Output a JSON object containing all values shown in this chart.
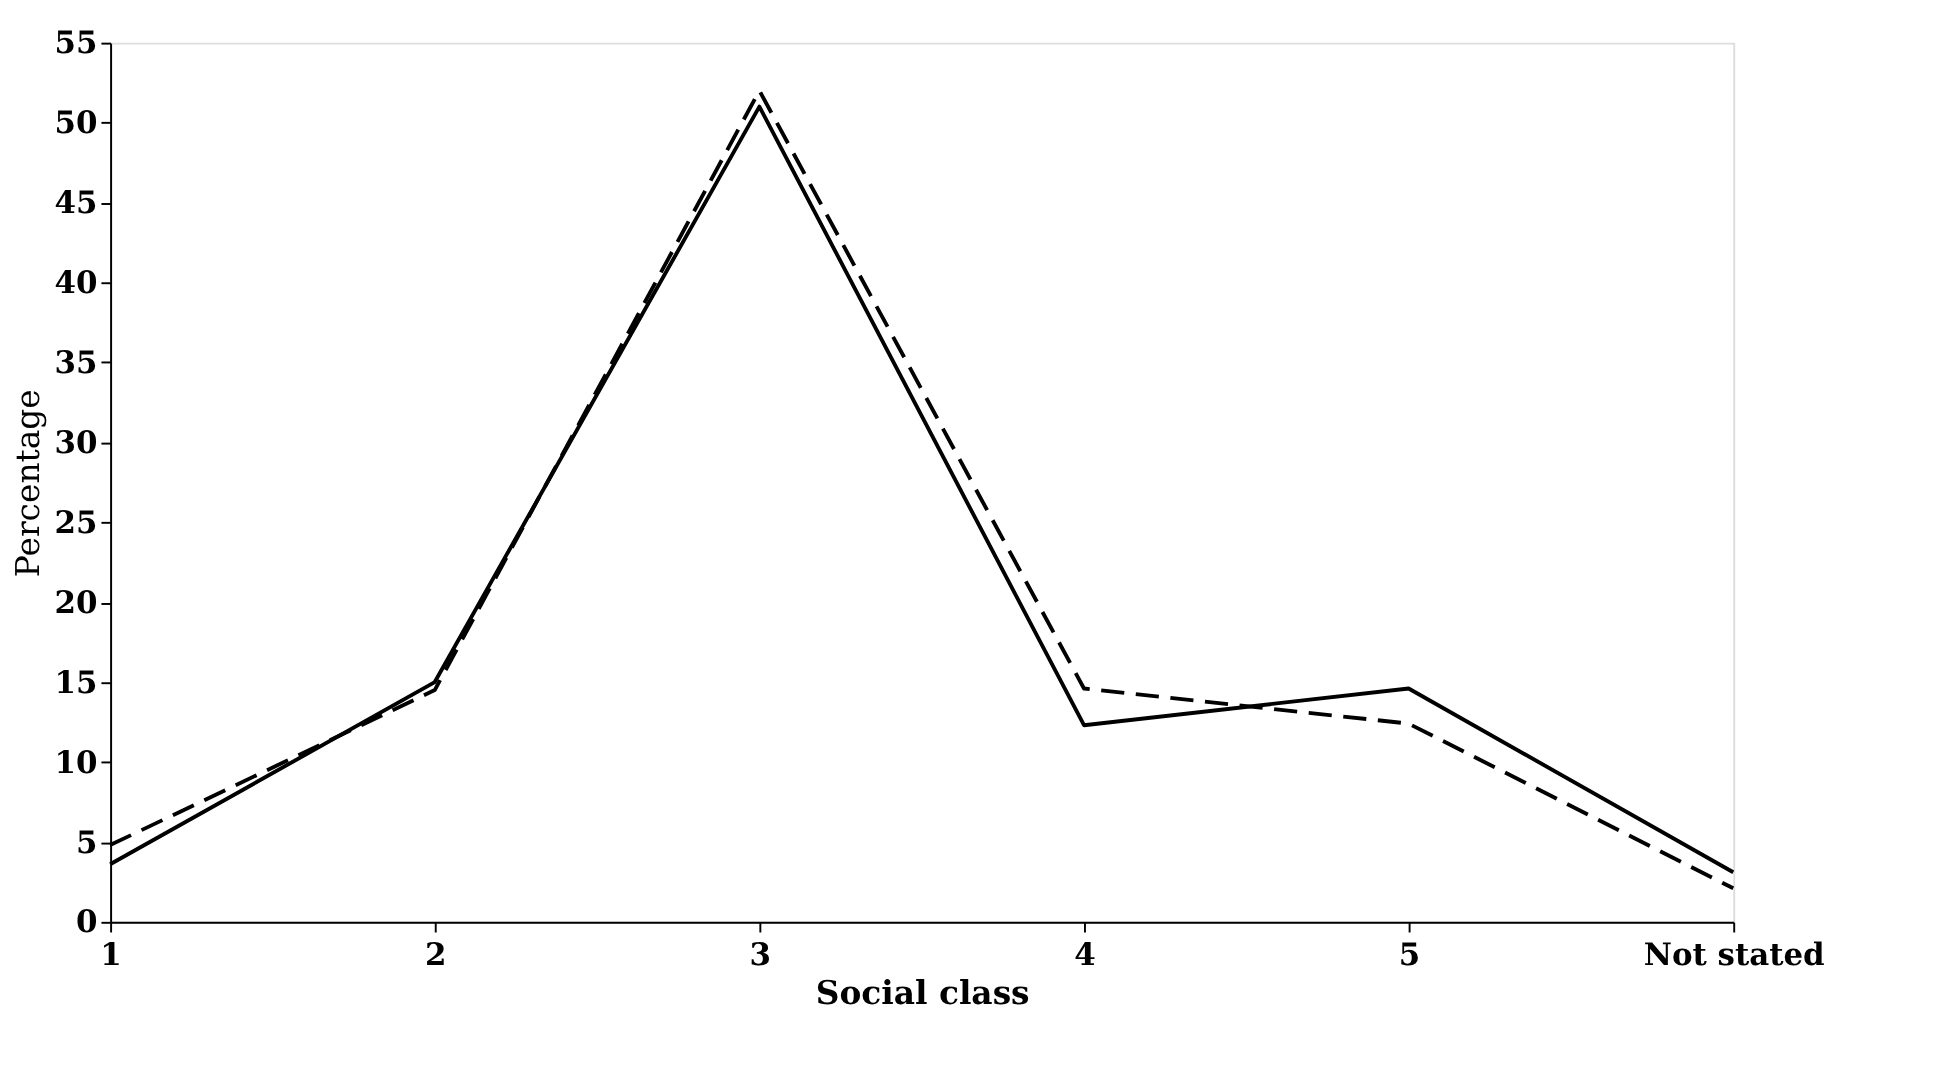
{
  "chart_data": {
    "type": "line",
    "xlabel": "Social class",
    "ylabel": "Percentage",
    "categories": [
      "1",
      "2",
      "3",
      "4",
      "5",
      "Not stated"
    ],
    "series": [
      {
        "color": "#000000",
        "line_style": "solid",
        "values": [
          3.6,
          15,
          51,
          12.3,
          14.6,
          3.1
        ]
      },
      {
        "color": "#000000",
        "line_style": "dashed",
        "values": [
          4.8,
          14.5,
          52,
          14.6,
          12.4,
          2.1
        ]
      }
    ],
    "ylim": [
      0,
      55
    ],
    "yticks": [
      0,
      5,
      10,
      15,
      20,
      25,
      30,
      35,
      40,
      45,
      50,
      55
    ],
    "grid": false,
    "marker": "none"
  }
}
